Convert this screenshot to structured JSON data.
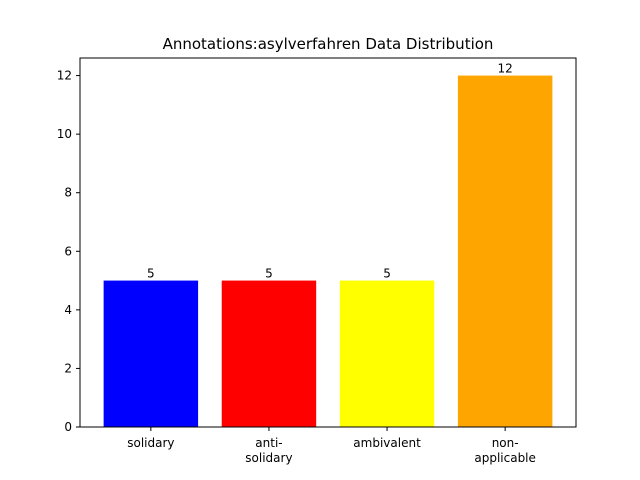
{
  "chart_data": {
    "type": "bar",
    "title": "Annotations:asylverfahren Data Distribution",
    "xlabel": "",
    "ylabel": "",
    "categories": [
      "solidary",
      "anti-\nsolidary",
      "ambivalent",
      "non-\napplicable"
    ],
    "values": [
      5,
      5,
      5,
      12
    ],
    "colors": [
      "#0000ff",
      "#ff0000",
      "#ffff00",
      "#ffa500"
    ],
    "ylim": [
      0,
      12.6
    ],
    "yticks": [
      0,
      2,
      4,
      6,
      8,
      10,
      12
    ],
    "grid": false,
    "legend": "none"
  }
}
